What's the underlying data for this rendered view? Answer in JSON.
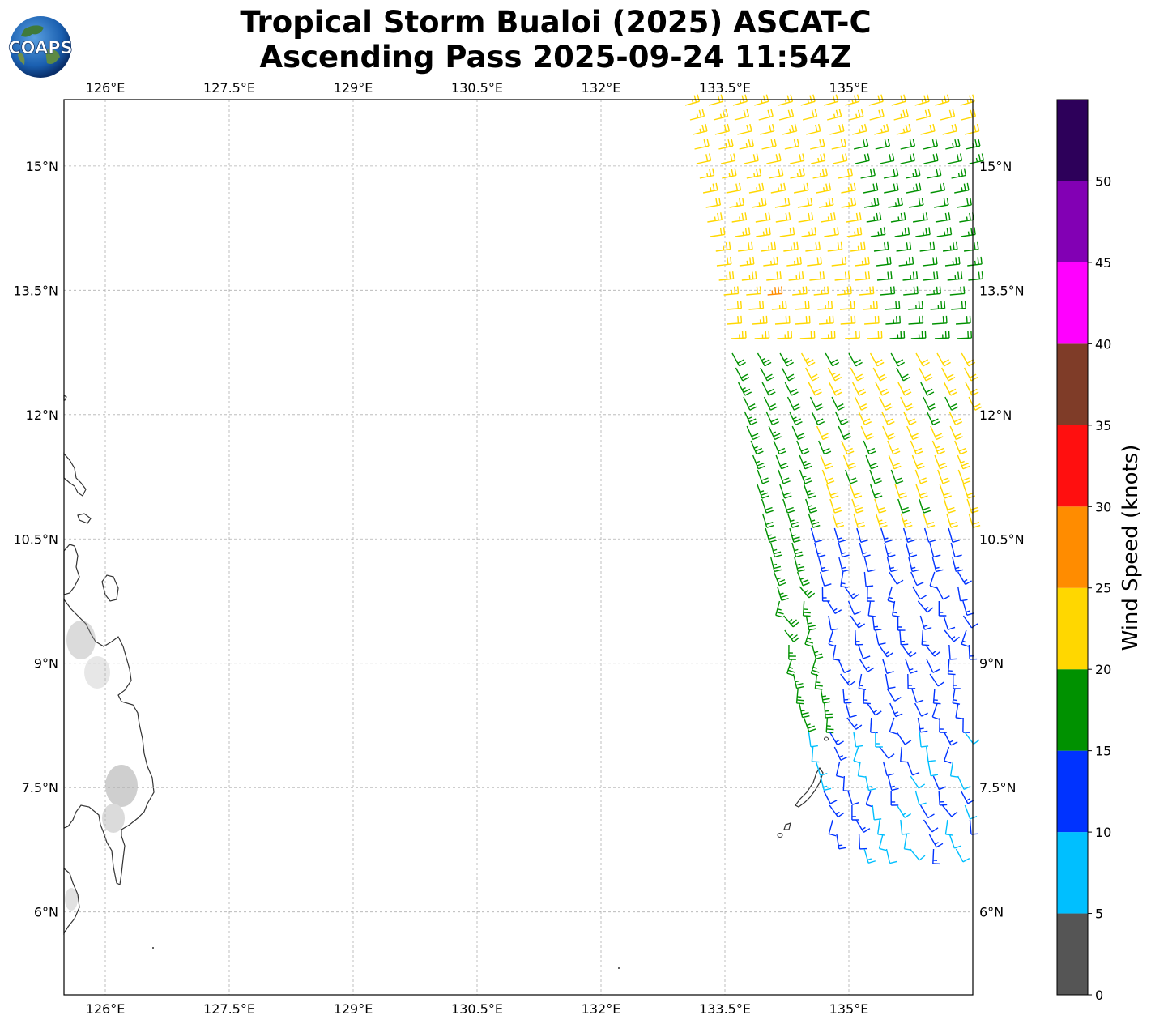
{
  "title": {
    "line1": "Tropical Storm Bualoi (2025) ASCAT-C",
    "line2": "Ascending Pass 2025-09-24 11:54Z"
  },
  "logo": {
    "text": "COAPS",
    "icon": "globe-logo-icon"
  },
  "map": {
    "lon_range": [
      125.5,
      136.5
    ],
    "lat_range": [
      5.0,
      15.8
    ],
    "lon_ticks": [
      126.0,
      127.5,
      129.0,
      130.5,
      132.0,
      133.5,
      135.0
    ],
    "lon_labels": [
      "126°E",
      "127.5°E",
      "129°E",
      "130.5°E",
      "132°E",
      "133.5°E",
      "135°E"
    ],
    "lat_ticks": [
      6.0,
      7.5,
      9.0,
      10.5,
      12.0,
      13.5,
      15.0
    ],
    "lat_labels": [
      "6°N",
      "7.5°N",
      "9°N",
      "10.5°N",
      "12°N",
      "13.5°N",
      "15°N"
    ],
    "grid": true,
    "land_color": "#ffffff",
    "coast_color": "#333333",
    "grid_color": "#b0b0b0"
  },
  "colorbar": {
    "label": "Wind Speed (knots)",
    "bounds": [
      0,
      5,
      10,
      15,
      20,
      25,
      30,
      35,
      40,
      45,
      50,
      55
    ],
    "tick_labels": [
      "0",
      "5",
      "10",
      "15",
      "20",
      "25",
      "30",
      "35",
      "40",
      "45",
      "50"
    ],
    "colors": [
      "#555555",
      "#00bfff",
      "#0033ff",
      "#009100",
      "#ffd700",
      "#ff8c00",
      "#ff0f0f",
      "#7f3c28",
      "#ff00ff",
      "#8200b4",
      "#2d005a"
    ]
  }
}
